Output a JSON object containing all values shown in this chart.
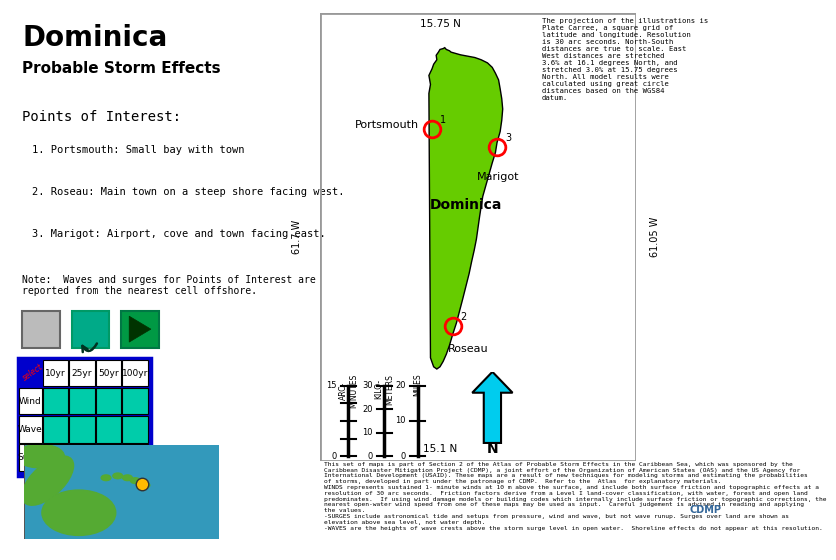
{
  "title": "Dominica",
  "subtitle": "Probable Storm Effects",
  "bg_color": "#ffffff",
  "map_bg_color": "#b8eaf5",
  "map_border_color": "#999999",
  "island_color": "#66cc00",
  "island_outline": "#000000",
  "lat_top": "15.75 N",
  "lat_bottom": "15.1 N",
  "lon_left": "61.7 W",
  "lon_right": "61.05 W",
  "points_of_interest": "Points of Interest:",
  "poi": [
    "1. Portsmouth: Small bay with town",
    "2. Roseau: Main town on a steep shore facing west.",
    "3. Marigot: Airport, cove and town facing east."
  ],
  "note": "Note:  Waves and surges for Points of Interest are\nreported from the nearest cell offshore.",
  "projection_text": "The projection of the illustrations is\nPlate Carree, a square grid of\nlatitude and longitude. Resolution\nis 30 arc seconds. North-South\ndistances are true to scale. East\nWest distances are stretched\n3.6% at 16.1 degrees North, and\nstretched 3.0% at 15.75 degrees\nNorth. All model results were\ncalculated using great circle\ndistances based on the WGS84\ndatum.",
  "bottom_text": "This set of maps is part of Section 2 of the Atlas of Probable Storm Effects in the Caribbean Sea, which was sponsored by the\nCaribbean Disaster Mitigation Project (CDMP), a joint effort of the Organization of American States (OAS) and the US Agency for\nInternational Development (USAID). These maps are a result of new techniques for modeling storms and estimating the probabilities\nof storms, developed in part under the patronage of CDMP.  Refer to the  Atlas  for explanatory materials.\nWINDS represents sustained 1- minute winds at 10 m above the surface, and include both surface friction and topographic effects at a\nresolution of 30 arc seconds.  Friction factors derive from a Level I land-cover classification, with water, forest and open land\npredominates.  If using wind damage models or building codes which internally include surface friction or topographic corrections, the\nnearest open-water wind speed from one of these maps may be used as input.  Careful judgement is advised in reading and applying\nthe values.\n-SURGES include astronomical tide and setups from pressure, wind and wave, but not wave runup. Surges over land are shown as\nelevation above sea level, not water depth.\n-WAVES are the heights of wave crests above the storm surge level in open water.  Shoreline effects do not appear at this resolution.",
  "table_rows": [
    "Wind",
    "Wave",
    "Surge"
  ],
  "table_cols": [
    "10yr",
    "25yr",
    "50yr",
    "100yr"
  ],
  "table_cell_color": "#00ccaa",
  "table_border_color": "#0000cc",
  "north_arrow_color": "#00ccee",
  "poi_portsmouth": [
    0.355,
    0.74
  ],
  "poi_marigot": [
    0.56,
    0.7
  ],
  "poi_roseau": [
    0.42,
    0.3
  ]
}
